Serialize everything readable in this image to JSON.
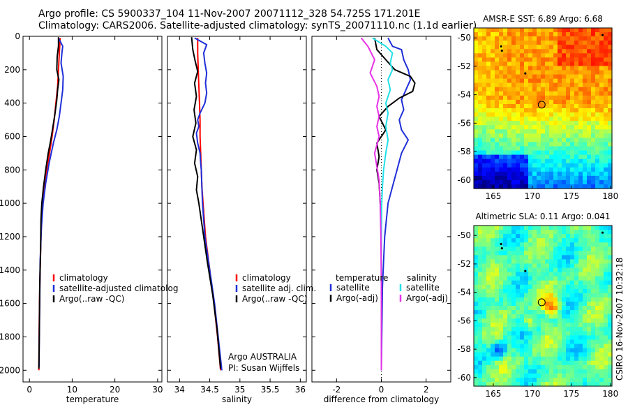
{
  "header": {
    "line1": "Argo profile: CS 5900337_104 11-Nov-2007 20071112_328 54.725S 171.201E",
    "line2": "Climatology: CARS2006. Satellite-adjusted climatology: synTS_20071110.nc (1.1d earlier)"
  },
  "credit": "CSIRO 16-Nov-2007 10:32:18",
  "colors": {
    "red": "#ff0000",
    "blue": "#1f2fd8",
    "black": "#000000",
    "cyan": "#22e0e8",
    "magenta": "#e832e8"
  },
  "chart_data": [
    {
      "id": "temperature",
      "type": "line",
      "xlabel": "temperature",
      "xlim": [
        -1.5,
        31
      ],
      "xticks": [
        0,
        10,
        20,
        30
      ],
      "ylim": [
        2070,
        0
      ],
      "yticks": [
        0,
        200,
        400,
        600,
        800,
        1000,
        1200,
        1400,
        1600,
        1800,
        2000
      ],
      "legend": {
        "placement": "lower-right",
        "labels": [
          "climatology",
          "satellite-adjusted climatolog",
          "Argo(..raw -QC)"
        ]
      },
      "series": [
        {
          "name": "climatology",
          "color": "red",
          "points": [
            [
              7.2,
              10
            ],
            [
              7.0,
              100
            ],
            [
              6.8,
              200
            ],
            [
              6.6,
              300
            ],
            [
              6.2,
              400
            ],
            [
              5.8,
              500
            ],
            [
              5.3,
              600
            ],
            [
              4.7,
              700
            ],
            [
              4.0,
              800
            ],
            [
              3.4,
              900
            ],
            [
              3.0,
              1000
            ],
            [
              2.7,
              1200
            ],
            [
              2.5,
              1400
            ],
            [
              2.35,
              1600
            ],
            [
              2.25,
              1800
            ],
            [
              2.2,
              2000
            ]
          ]
        },
        {
          "name": "satellite-adjusted climatolog",
          "color": "blue",
          "points": [
            [
              6.8,
              10
            ],
            [
              7.8,
              60
            ],
            [
              7.6,
              100
            ],
            [
              7.4,
              160
            ],
            [
              7.9,
              240
            ],
            [
              7.8,
              320
            ],
            [
              7.5,
              380
            ],
            [
              7.0,
              480
            ],
            [
              6.4,
              560
            ],
            [
              5.6,
              640
            ],
            [
              4.6,
              760
            ],
            [
              3.8,
              880
            ],
            [
              3.2,
              1000
            ],
            [
              2.8,
              1150
            ],
            [
              2.5,
              1350
            ],
            [
              2.4,
              1600
            ],
            [
              2.3,
              1800
            ],
            [
              2.25,
              1980
            ]
          ]
        },
        {
          "name": "Argo(..raw -QC)",
          "color": "black",
          "points": [
            [
              6.8,
              5
            ],
            [
              6.8,
              60
            ],
            [
              6.5,
              120
            ],
            [
              6.4,
              200
            ],
            [
              6.9,
              260
            ],
            [
              6.6,
              320
            ],
            [
              6.4,
              380
            ],
            [
              6.0,
              460
            ],
            [
              5.5,
              540
            ],
            [
              5.0,
              620
            ],
            [
              4.4,
              700
            ],
            [
              3.8,
              800
            ],
            [
              3.3,
              900
            ],
            [
              2.9,
              1000
            ],
            [
              2.7,
              1100
            ],
            [
              2.6,
              1300
            ],
            [
              2.4,
              1500
            ],
            [
              2.3,
              1800
            ],
            [
              2.2,
              1990
            ]
          ]
        }
      ]
    },
    {
      "id": "salinity",
      "type": "line",
      "xlabel": "salinity",
      "xlim": [
        33.8,
        36.1
      ],
      "xticks": [
        34,
        34.5,
        35,
        35.5,
        36
      ],
      "ylim": [
        2070,
        0
      ],
      "yticks": [
        0,
        200,
        400,
        600,
        800,
        1000,
        1200,
        1400,
        1600,
        1800,
        2000
      ],
      "annotation": [
        "Argo AUSTRALIA",
        "PI: Susan Wijffels"
      ],
      "legend": {
        "placement": "lower-right",
        "labels": [
          "climatology",
          "satellite adj. clim.",
          "Argo(..raw -QC)"
        ]
      },
      "series": [
        {
          "name": "climatology",
          "color": "red",
          "points": [
            [
              34.3,
              10
            ],
            [
              34.3,
              100
            ],
            [
              34.31,
              200
            ],
            [
              34.32,
              300
            ],
            [
              34.33,
              400
            ],
            [
              34.34,
              500
            ],
            [
              34.34,
              600
            ],
            [
              34.35,
              700
            ],
            [
              34.36,
              800
            ],
            [
              34.37,
              900
            ],
            [
              34.39,
              1000
            ],
            [
              34.43,
              1200
            ],
            [
              34.5,
              1400
            ],
            [
              34.57,
              1600
            ],
            [
              34.63,
              1800
            ],
            [
              34.68,
              2000
            ]
          ]
        },
        {
          "name": "satellite adj. clim.",
          "color": "blue",
          "points": [
            [
              34.25,
              10
            ],
            [
              34.45,
              50
            ],
            [
              34.4,
              100
            ],
            [
              34.42,
              160
            ],
            [
              34.45,
              220
            ],
            [
              34.43,
              280
            ],
            [
              34.45,
              340
            ],
            [
              34.42,
              400
            ],
            [
              34.34,
              460
            ],
            [
              34.3,
              500
            ],
            [
              34.32,
              540
            ],
            [
              34.28,
              580
            ],
            [
              34.3,
              640
            ],
            [
              34.34,
              700
            ],
            [
              34.35,
              760
            ],
            [
              34.36,
              800
            ],
            [
              34.37,
              900
            ],
            [
              34.38,
              1000
            ],
            [
              34.42,
              1200
            ],
            [
              34.5,
              1400
            ],
            [
              34.58,
              1600
            ],
            [
              34.64,
              1800
            ],
            [
              34.7,
              2000
            ]
          ]
        },
        {
          "name": "Argo(..raw -QC)",
          "color": "black",
          "points": [
            [
              34.2,
              5
            ],
            [
              34.22,
              80
            ],
            [
              34.26,
              150
            ],
            [
              34.3,
              210
            ],
            [
              34.25,
              280
            ],
            [
              34.28,
              360
            ],
            [
              34.24,
              440
            ],
            [
              34.27,
              520
            ],
            [
              34.22,
              600
            ],
            [
              34.28,
              680
            ],
            [
              34.25,
              760
            ],
            [
              34.3,
              840
            ],
            [
              34.28,
              920
            ],
            [
              34.32,
              1000
            ],
            [
              34.38,
              1150
            ],
            [
              34.46,
              1350
            ],
            [
              34.55,
              1550
            ],
            [
              34.62,
              1750
            ],
            [
              34.68,
              1990
            ]
          ]
        }
      ]
    },
    {
      "id": "difference",
      "type": "line",
      "xlabel": "difference from climatology",
      "xlim": [
        -3.1,
        3.1
      ],
      "xticks": [
        -2,
        0,
        2
      ],
      "ylim": [
        2070,
        0
      ],
      "yticks": [
        0,
        200,
        400,
        600,
        800,
        1000,
        1200,
        1400,
        1600,
        1800,
        2000
      ],
      "legend": {
        "placement": "lower-center",
        "temperature": {
          "heading": "temperature",
          "labels": [
            "satellite",
            "Argo(-adj)"
          ]
        },
        "salinity": {
          "heading": "salinity",
          "labels": [
            "satellite",
            "Argo(-adj)"
          ]
        }
      },
      "series": [
        {
          "name": "temperature satellite",
          "color": "blue",
          "points": [
            [
              0.3,
              10
            ],
            [
              0.5,
              60
            ],
            [
              0.9,
              80
            ],
            [
              1.0,
              140
            ],
            [
              1.2,
              200
            ],
            [
              1.3,
              260
            ],
            [
              1.1,
              320
            ],
            [
              0.9,
              380
            ],
            [
              1.0,
              440
            ],
            [
              0.8,
              500
            ],
            [
              0.9,
              560
            ],
            [
              1.2,
              620
            ],
            [
              0.9,
              700
            ],
            [
              0.7,
              800
            ],
            [
              0.5,
              900
            ],
            [
              0.3,
              1000
            ],
            [
              0.15,
              1200
            ],
            [
              0.05,
              1500
            ],
            [
              0.02,
              1800
            ],
            [
              0.0,
              2000
            ]
          ]
        },
        {
          "name": "temperature Argo(-adj)",
          "color": "black",
          "points": [
            [
              -0.3,
              10
            ],
            [
              -0.2,
              80
            ],
            [
              0.2,
              140
            ],
            [
              0.6,
              200
            ],
            [
              1.3,
              240
            ],
            [
              1.5,
              280
            ],
            [
              1.4,
              330
            ],
            [
              0.8,
              370
            ],
            [
              0.3,
              420
            ],
            [
              -0.1,
              480
            ],
            [
              0.2,
              560
            ],
            [
              -0.2,
              640
            ],
            [
              -0.1,
              720
            ],
            [
              -0.2,
              800
            ],
            [
              -0.1,
              880
            ],
            [
              -0.05,
              1000
            ],
            [
              0.0,
              1200
            ],
            [
              0.0,
              1500
            ],
            [
              0.0,
              1800
            ],
            [
              0.0,
              2000
            ]
          ]
        },
        {
          "name": "salinity satellite",
          "color": "cyan",
          "points": [
            [
              -0.4,
              10
            ],
            [
              0.2,
              60
            ],
            [
              0.5,
              100
            ],
            [
              0.4,
              160
            ],
            [
              0.5,
              200
            ],
            [
              0.3,
              260
            ],
            [
              0.4,
              320
            ],
            [
              0.2,
              400
            ],
            [
              0.3,
              460
            ],
            [
              0.2,
              540
            ],
            [
              0.3,
              620
            ],
            [
              0.2,
              700
            ],
            [
              0.1,
              800
            ],
            [
              0.05,
              900
            ],
            [
              0.02,
              1000
            ],
            [
              0.0,
              1200
            ],
            [
              0.0,
              1500
            ],
            [
              0.0,
              1800
            ],
            [
              0.0,
              2000
            ]
          ]
        },
        {
          "name": "salinity Argo(-adj)",
          "color": "magenta",
          "points": [
            [
              -0.9,
              10
            ],
            [
              -0.6,
              60
            ],
            [
              -0.3,
              140
            ],
            [
              -0.5,
              220
            ],
            [
              -0.2,
              300
            ],
            [
              -0.1,
              360
            ],
            [
              -0.2,
              420
            ],
            [
              -0.1,
              480
            ],
            [
              -0.2,
              540
            ],
            [
              -0.1,
              600
            ],
            [
              -0.3,
              700
            ],
            [
              -0.2,
              780
            ],
            [
              -0.1,
              860
            ],
            [
              -0.05,
              1000
            ],
            [
              -0.02,
              1200
            ],
            [
              0.0,
              1500
            ],
            [
              0.0,
              1800
            ],
            [
              0.0,
              2000
            ]
          ]
        }
      ]
    },
    {
      "id": "sst-map",
      "type": "heatmap",
      "title": "AMSR-E SST: 6.89 Argo: 6.68",
      "xlim": [
        162.5,
        180.2
      ],
      "xticks": [
        165,
        170,
        175,
        180
      ],
      "ylim": [
        -60.6,
        -49.3
      ],
      "yticks": [
        -50,
        -52,
        -54,
        -56,
        -58,
        -60
      ],
      "marker": {
        "lon": 171.2,
        "lat": -54.7
      }
    },
    {
      "id": "sla-map",
      "type": "heatmap",
      "title": "Altimetric SLA: 0.11 Argo: 0.041",
      "xlim": [
        162.5,
        180.2
      ],
      "xticks": [
        165,
        170,
        175,
        180
      ],
      "ylim": [
        -60.6,
        -49.3
      ],
      "yticks": [
        -50,
        -52,
        -54,
        -56,
        -58,
        -60
      ],
      "marker": {
        "lon": 171.2,
        "lat": -54.7
      }
    }
  ]
}
